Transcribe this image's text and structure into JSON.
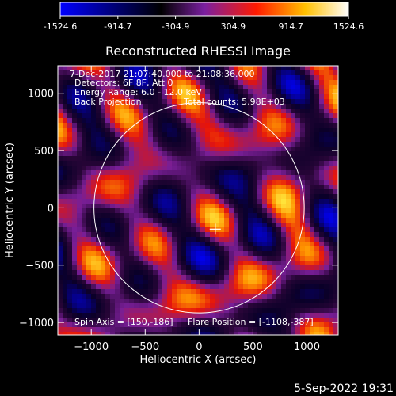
{
  "colorbar": {
    "ticks": [
      "-1524.6",
      "-914.7",
      "-304.9",
      "304.9",
      "914.7",
      "1524.6"
    ],
    "stops": [
      "#0000ff",
      "#000000",
      "#7a1fa0",
      "#ff1a00",
      "#ffc000",
      "#ffffff"
    ]
  },
  "timestamp": "5-Sep-2022 19:31",
  "annotations": {
    "time_range": "7-Dec-2017 21:07:40.000 to 21:08:36.000",
    "detectors": "Detectors: 6F 8F, Att 0",
    "energy": "Energy Range: 6.0 - 12.0 keV",
    "algorithm": "Back Projection",
    "total_counts": "Total counts: 5.98E+03",
    "spin_axis": "Spin Axis = [150,-186]",
    "flare_position": "Flare Position = [-1108,-387]"
  },
  "chart_data": {
    "type": "heatmap",
    "title": "Reconstructed RHESSI Image",
    "xlabel": "Heliocentric X (arcsec)",
    "ylabel": "Heliocentric Y (arcsec)",
    "xlim": [
      -1310,
      1290
    ],
    "ylim": [
      -1110,
      1240
    ],
    "x_ticks": [
      {
        "value": -1000,
        "label": "−1000"
      },
      {
        "value": -500,
        "label": "−500"
      },
      {
        "value": 0,
        "label": "0"
      },
      {
        "value": 500,
        "label": "500"
      },
      {
        "value": 1000,
        "label": "1000"
      }
    ],
    "y_ticks": [
      {
        "value": 1000,
        "label": "1000"
      },
      {
        "value": 500,
        "label": "500"
      },
      {
        "value": 0,
        "label": "0"
      },
      {
        "value": -500,
        "label": "−500"
      },
      {
        "value": -1000,
        "label": "−1000"
      }
    ],
    "value_range": [
      -1524.6,
      1524.6
    ],
    "solar_limb": {
      "center": [
        0,
        0
      ],
      "radius": 975
    },
    "spin_axis_marker": [
      150,
      -186
    ]
  }
}
